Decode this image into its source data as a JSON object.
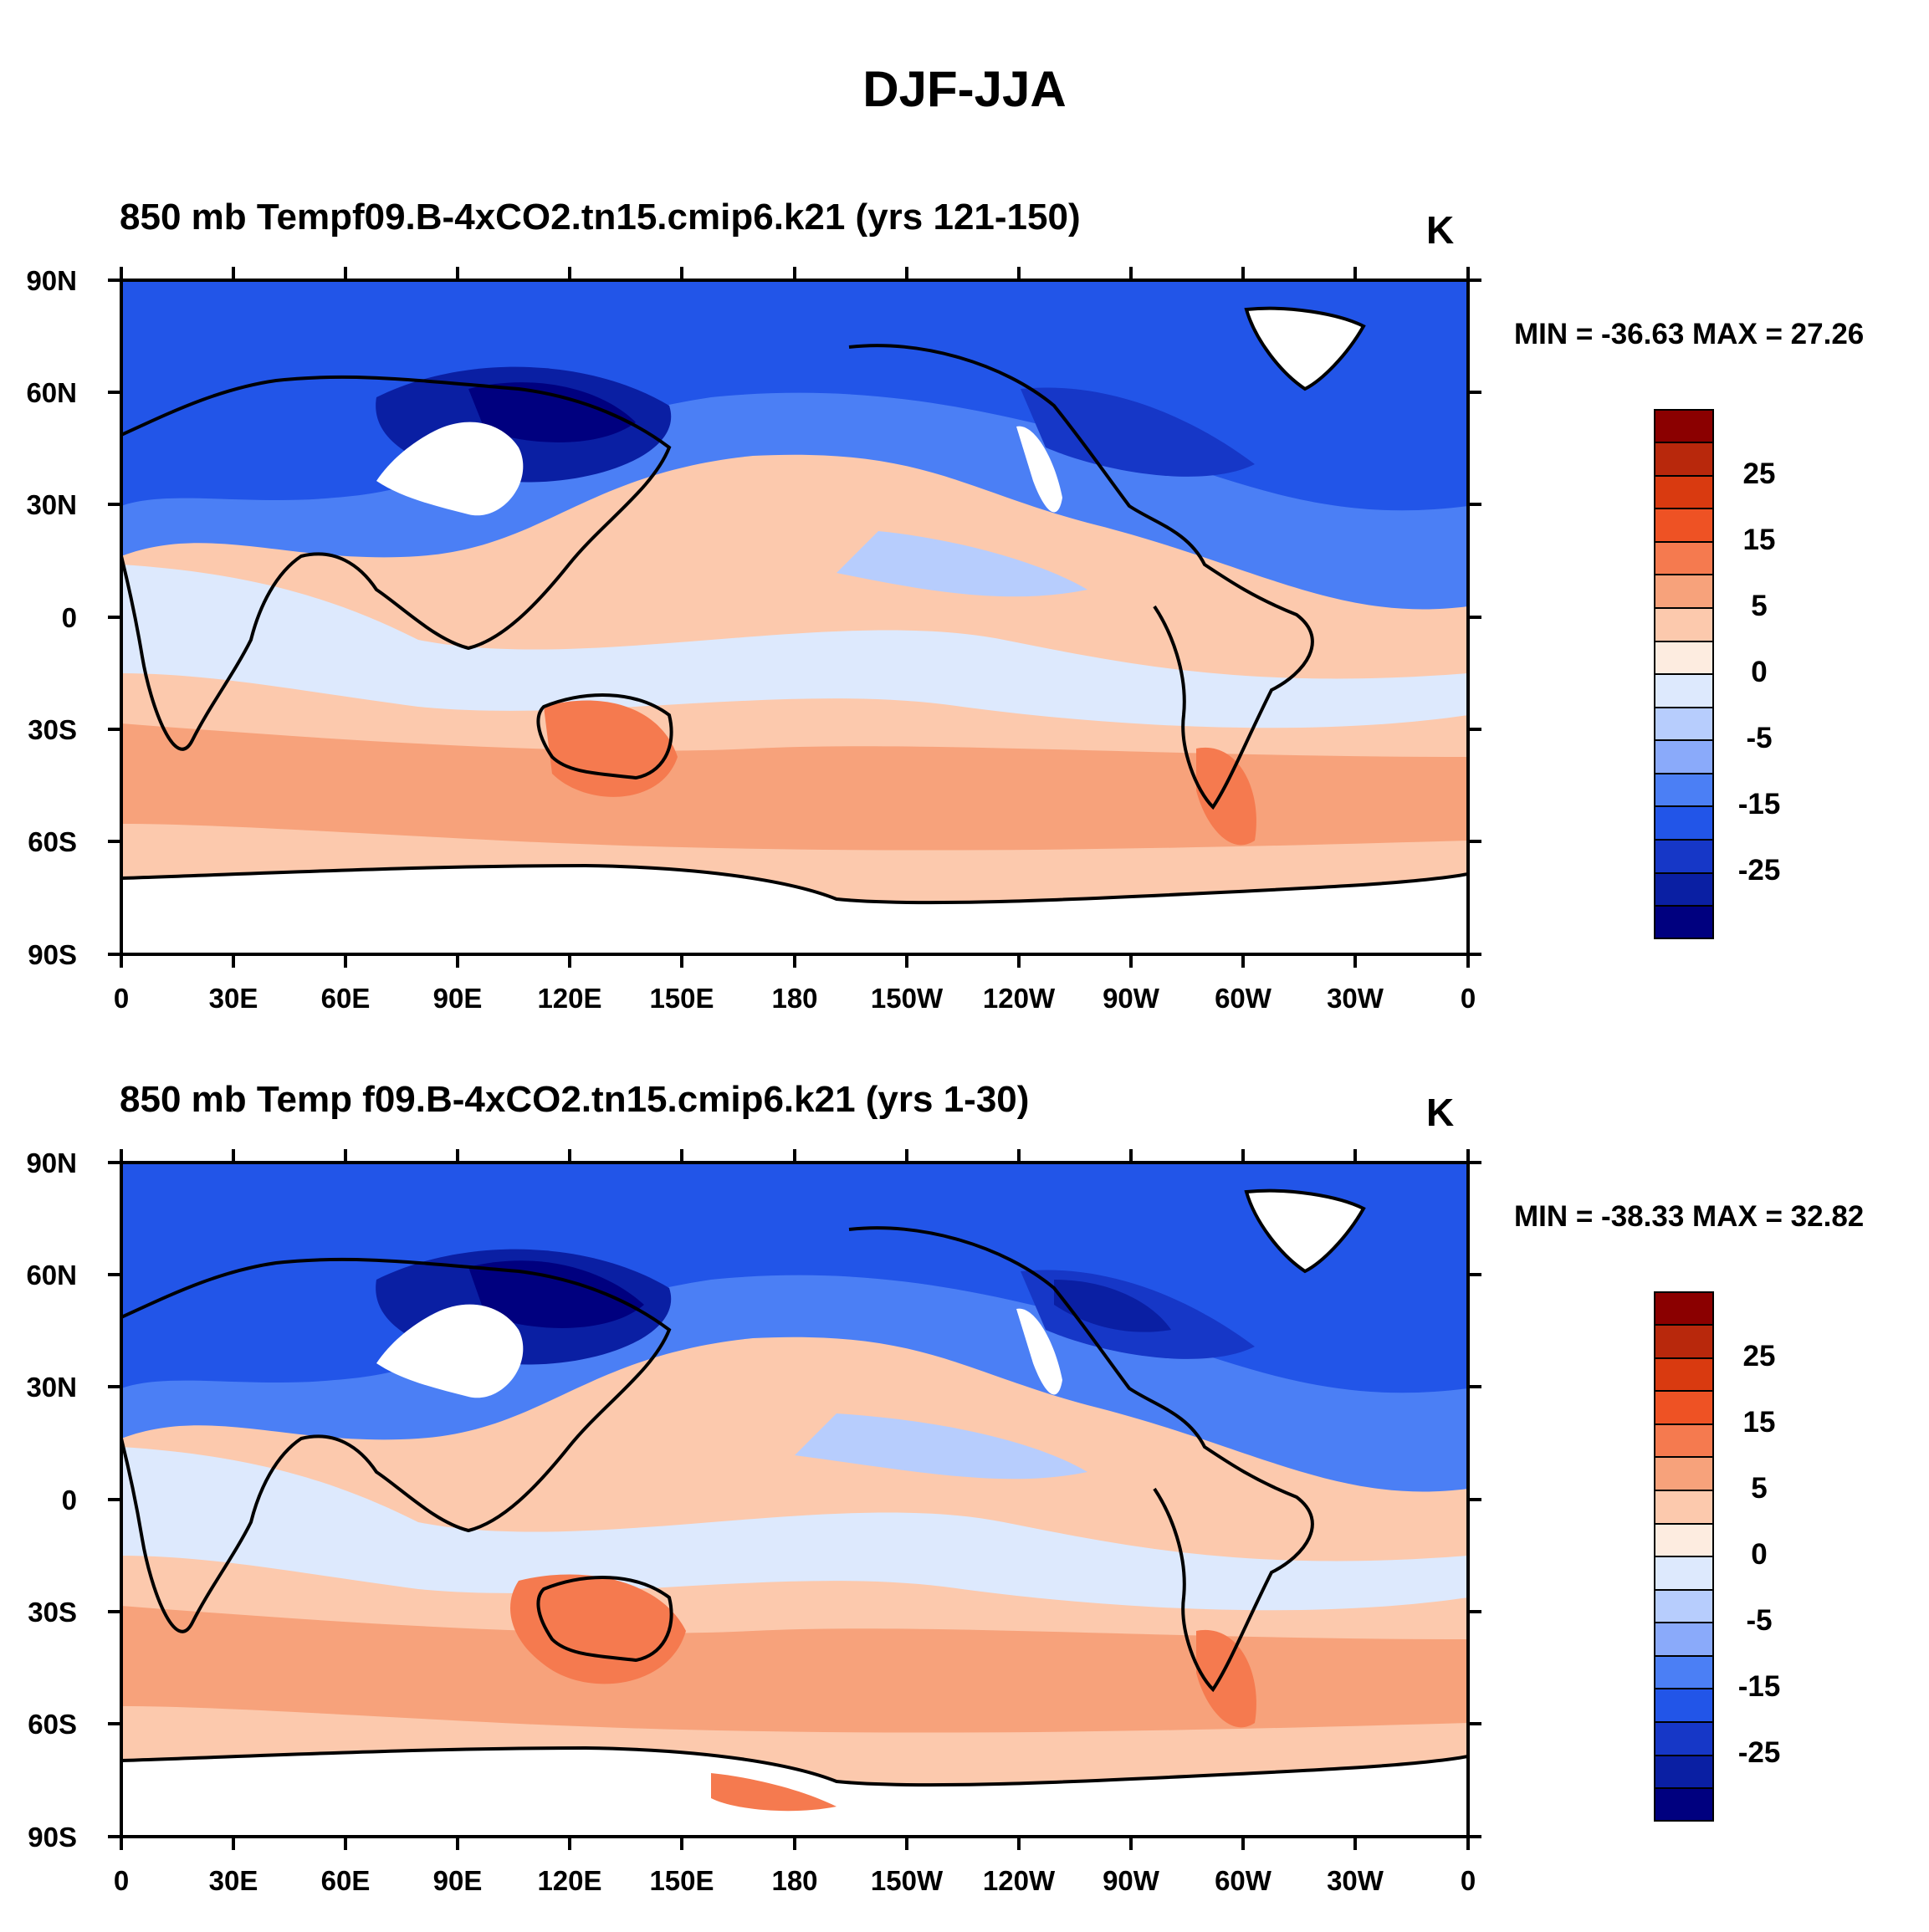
{
  "title": "DJF-JJA",
  "colorbar": {
    "colors": [
      "#00007f",
      "#0a1fa3",
      "#1637c7",
      "#2255e8",
      "#4b7ff5",
      "#8aaafa",
      "#b7cdfd",
      "#dde9fd",
      "#fdece0",
      "#fcc9ad",
      "#f7a27b",
      "#f57a4f",
      "#ee5224",
      "#d93a10",
      "#b8280c",
      "#8b0000"
    ],
    "labels": [
      "25",
      "15",
      "5",
      "0",
      "-5",
      "-15",
      "-25"
    ]
  },
  "axes": {
    "x_ticks": [
      "0",
      "30E",
      "60E",
      "90E",
      "120E",
      "150E",
      "180",
      "150W",
      "120W",
      "90W",
      "60W",
      "30W",
      "0"
    ],
    "y_ticks": [
      "90N",
      "60N",
      "30N",
      "0",
      "30S",
      "60S",
      "90S"
    ]
  },
  "panels": [
    {
      "left_title": "850 mb Tempf09.B-4xCO2.tn15.cmip6.k21 (yrs 121-150)",
      "units": "K",
      "minmax": "MIN = -36.63 MAX =  27.26",
      "min": -36.63,
      "max": 27.26
    },
    {
      "left_title": "850 mb Temp   f09.B-4xCO2.tn15.cmip6.k21 (yrs 1-30)",
      "units": "K",
      "minmax": "MIN = -38.33 MAX =  32.82",
      "min": -38.33,
      "max": 32.82
    }
  ]
}
